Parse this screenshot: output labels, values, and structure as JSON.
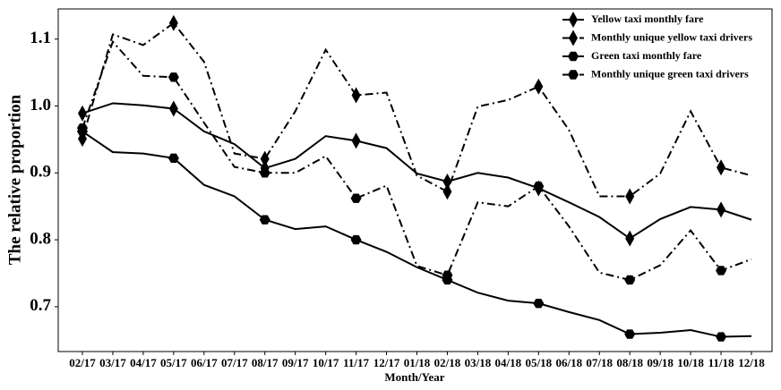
{
  "chart_data": {
    "type": "line",
    "x_label": "Month/Year",
    "y_label": "The relative proportion",
    "categories": [
      "02/17",
      "03/17",
      "04/17",
      "05/17",
      "06/17",
      "07/17",
      "08/17",
      "09/17",
      "10/17",
      "11/17",
      "12/17",
      "01/18",
      "02/18",
      "03/18",
      "04/18",
      "05/18",
      "06/18",
      "07/18",
      "08/18",
      "09/18",
      "10/18",
      "11/18",
      "12/18"
    ],
    "ylim": [
      0.633,
      1.145
    ],
    "yticks": [
      0.7,
      0.8,
      0.9,
      {
        "value": 1,
        "label": "1.0"
      },
      1.1
    ],
    "grid": false,
    "legend": "upper right",
    "marker_every": 3,
    "series": [
      {
        "name": "Yellow taxi monthly fare",
        "color": "#000000",
        "marker": "diamond",
        "dash": "solid",
        "values": [
          0.989,
          1.004,
          1.001,
          0.996,
          0.962,
          0.943,
          0.907,
          0.921,
          0.955,
          0.948,
          0.937,
          0.899,
          0.887,
          0.9,
          0.893,
          0.877,
          0.856,
          0.834,
          0.802,
          0.831,
          0.849,
          0.845,
          0.83
        ]
      },
      {
        "name": "Monthly unique yellow taxi drivers",
        "color": "#000000",
        "marker": "diamond",
        "dash": "dashdot",
        "values": [
          0.951,
          1.107,
          1.091,
          1.124,
          1.066,
          0.929,
          0.921,
          0.992,
          1.084,
          1.016,
          1.02,
          0.896,
          0.872,
          0.999,
          1.009,
          1.029,
          0.964,
          0.865,
          0.865,
          0.899,
          0.992,
          0.908,
          0.896
        ]
      },
      {
        "name": "Green taxi monthly fare",
        "color": "#000000",
        "marker": "hexagon",
        "dash": "solid",
        "values": [
          0.962,
          0.931,
          0.929,
          0.922,
          0.882,
          0.865,
          0.83,
          0.816,
          0.82,
          0.8,
          0.782,
          0.759,
          0.74,
          0.721,
          0.709,
          0.705,
          0.692,
          0.68,
          0.659,
          0.661,
          0.665,
          0.655,
          0.656
        ]
      },
      {
        "name": "Monthly unique green taxi drivers",
        "color": "#000000",
        "marker": "hexagon",
        "dash": "dashdot",
        "values": [
          0.967,
          1.096,
          1.045,
          1.043,
          0.975,
          0.909,
          0.9,
          0.9,
          0.925,
          0.862,
          0.881,
          0.761,
          0.747,
          0.856,
          0.85,
          0.88,
          0.82,
          0.751,
          0.74,
          0.762,
          0.814,
          0.754,
          0.771
        ]
      }
    ]
  }
}
